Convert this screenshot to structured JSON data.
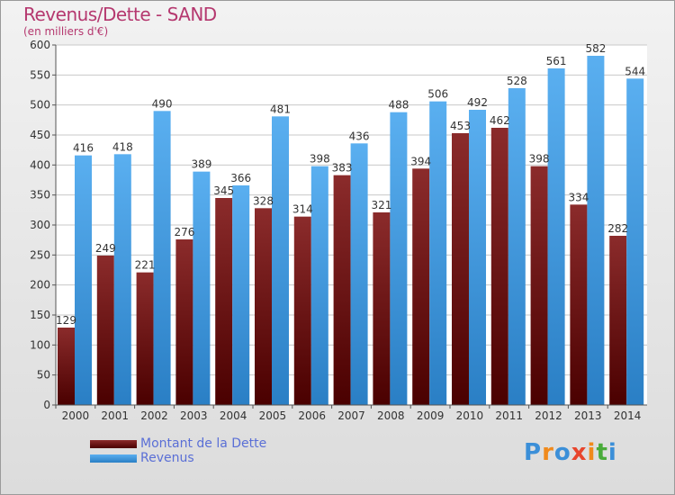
{
  "title": "Revenus/Dette - SAND",
  "subtitle": "(en milliers d'€)",
  "colors": {
    "dette_top": "#8b2b2b",
    "dette_bottom": "#4a0000",
    "revenus_top": "#5aaff0",
    "revenus_bottom": "#2a7fc5",
    "title": "#b5386f",
    "legend_text": "#5a6fd6"
  },
  "legend": {
    "dette": "Montant de la Dette",
    "revenus": "Revenus"
  },
  "logo": {
    "text": "Proxiti",
    "letters": [
      "P",
      "r",
      "o",
      "x",
      "i",
      "t",
      "i"
    ],
    "letter_colors": [
      "#3b8fd8",
      "#f08a1c",
      "#3b8fd8",
      "#e8452c",
      "#f08a1c",
      "#4aab3a",
      "#3b8fd8"
    ]
  },
  "chart_data": {
    "type": "bar",
    "categories": [
      "2000",
      "2001",
      "2002",
      "2003",
      "2004",
      "2005",
      "2006",
      "2007",
      "2008",
      "2009",
      "2010",
      "2011",
      "2012",
      "2013",
      "2014"
    ],
    "series": [
      {
        "name": "Montant de la Dette",
        "values": [
          129,
          249,
          221,
          276,
          345,
          328,
          314,
          383,
          321,
          394,
          453,
          462,
          398,
          334,
          282
        ],
        "labels": [
          "129",
          "249",
          "221",
          "276",
          "345",
          "328",
          "314",
          "383",
          "321",
          "394",
          "453",
          "462",
          "398",
          "334",
          "282"
        ]
      },
      {
        "name": "Revenus",
        "values": [
          416,
          418,
          490,
          389,
          366,
          481,
          398,
          436,
          488,
          506,
          492,
          528,
          561,
          582,
          544
        ],
        "labels": [
          "416",
          "418",
          "490",
          "389",
          "366",
          "481",
          "398",
          "436",
          "488",
          "506",
          "492",
          "528",
          "561",
          "582",
          "544"
        ]
      }
    ],
    "ylim": [
      0,
      600
    ],
    "yticks": [
      0,
      50,
      100,
      150,
      200,
      250,
      300,
      350,
      400,
      450,
      500,
      550,
      600
    ],
    "grid": true,
    "legend_position": "bottom-left"
  }
}
